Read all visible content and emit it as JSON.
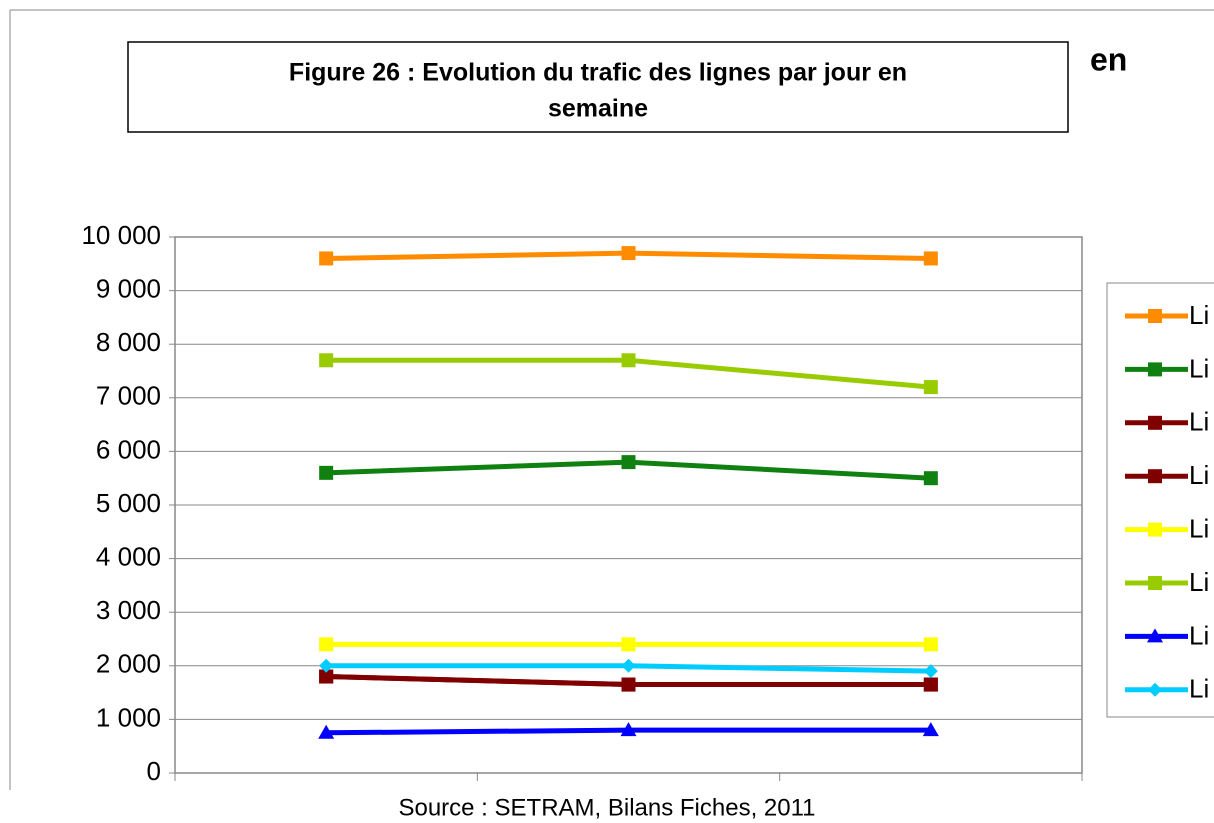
{
  "chart_data": {
    "type": "line",
    "title": [
      "Figure 26 : Evolution du trafic des lignes par jour en",
      "semaine"
    ],
    "annotations": [
      "en"
    ],
    "source": "Source : SETRAM, Bilans Fiches, 2011",
    "categories": [
      null,
      null,
      null
    ],
    "ylim": [
      0,
      10000
    ],
    "yticks": [
      0,
      {
        "value": 1000,
        "label": "1 000"
      },
      {
        "value": 2000,
        "label": "2 000"
      },
      {
        "value": 3000,
        "label": "3 000"
      },
      {
        "value": 4000,
        "label": "4 000"
      },
      {
        "value": 5000,
        "label": "5 000"
      },
      {
        "value": 6000,
        "label": "6 000"
      },
      {
        "value": 7000,
        "label": "7 000"
      },
      {
        "value": 8000,
        "label": "8 000"
      },
      {
        "value": 9000,
        "label": "9 000"
      },
      {
        "value": 10000,
        "label": "10 000"
      }
    ],
    "grid": true,
    "legend": "right",
    "series": [
      {
        "name": "Li",
        "color": "#ff8c00",
        "marker": "square",
        "values": [
          9600,
          9700,
          9600
        ]
      },
      {
        "name": "Li",
        "color": "#108010",
        "marker": "square",
        "values": [
          5600,
          5800,
          5500
        ]
      },
      {
        "name": "Li",
        "color": "#800000",
        "marker": "square",
        "values": [
          1800,
          1650,
          1650
        ]
      },
      {
        "name": "Li",
        "color": "#800000",
        "marker": "square",
        "values": [
          1800,
          1650,
          1650
        ]
      },
      {
        "name": "Li",
        "color": "#ffff00",
        "marker": "square",
        "values": [
          2400,
          2400,
          2400
        ]
      },
      {
        "name": "Li",
        "color": "#99cc00",
        "marker": "square",
        "values": [
          7700,
          7700,
          7200
        ]
      },
      {
        "name": "Li",
        "color": "#0000ff",
        "marker": "triangle",
        "values": [
          750,
          800,
          800
        ]
      },
      {
        "name": "Li",
        "color": "#00ccff",
        "marker": "diamond",
        "values": [
          2000,
          2000,
          1900
        ]
      }
    ]
  }
}
